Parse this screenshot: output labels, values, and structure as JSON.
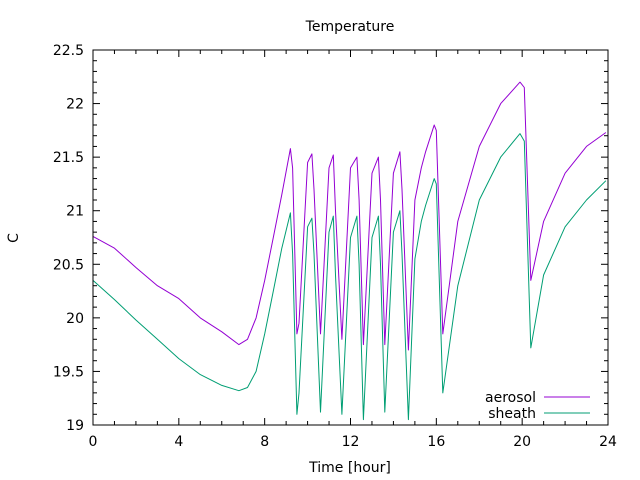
{
  "chart_data": {
    "type": "line",
    "title": "Temperature",
    "xlabel": "Time [hour]",
    "ylabel": "C",
    "xlim": [
      0,
      24
    ],
    "ylim": [
      19,
      22.5
    ],
    "xticks": [
      "0",
      "4",
      "8",
      "12",
      "16",
      "20",
      "24"
    ],
    "yticks": [
      "19",
      "19.5",
      "20",
      "20.5",
      "21",
      "21.5",
      "22",
      "22.5"
    ],
    "grid": false,
    "legend_position": "bottom-right",
    "series": [
      {
        "name": "aerosol",
        "color": "#9400d3",
        "x": [
          0,
          1,
          2,
          3,
          4,
          5,
          6,
          6.8,
          7.2,
          7.6,
          8.0,
          8.4,
          8.8,
          9.2,
          9.3,
          9.5,
          9.6,
          10.0,
          10.2,
          10.3,
          10.6,
          11.0,
          11.2,
          11.3,
          11.6,
          12.0,
          12.3,
          12.4,
          12.6,
          13.0,
          13.3,
          13.4,
          13.6,
          14.0,
          14.3,
          14.4,
          14.7,
          15.0,
          15.3,
          15.5,
          15.9,
          16.0,
          16.3,
          17.0,
          18.0,
          19.0,
          19.9,
          20.1,
          20.4,
          21.0,
          22.0,
          23.0,
          23.9
        ],
        "y": [
          20.76,
          20.65,
          20.47,
          20.3,
          20.18,
          20.0,
          19.87,
          19.75,
          19.8,
          20.0,
          20.35,
          20.75,
          21.15,
          21.58,
          21.4,
          19.85,
          19.95,
          21.45,
          21.53,
          21.2,
          19.85,
          21.4,
          21.52,
          21.0,
          19.8,
          21.4,
          21.5,
          21.1,
          19.75,
          21.35,
          21.5,
          21.1,
          19.75,
          21.35,
          21.55,
          21.2,
          19.7,
          21.1,
          21.4,
          21.55,
          21.8,
          21.75,
          19.85,
          20.9,
          21.6,
          22.0,
          22.2,
          22.15,
          20.35,
          20.9,
          21.35,
          21.6,
          21.73
        ]
      },
      {
        "name": "sheath",
        "color": "#009e73",
        "x": [
          0,
          1,
          2,
          3,
          4,
          5,
          6,
          6.8,
          7.2,
          7.6,
          8.0,
          8.4,
          8.8,
          9.2,
          9.3,
          9.5,
          9.6,
          10.0,
          10.2,
          10.3,
          10.6,
          11.0,
          11.2,
          11.3,
          11.6,
          12.0,
          12.3,
          12.4,
          12.6,
          13.0,
          13.3,
          13.4,
          13.6,
          14.0,
          14.3,
          14.4,
          14.7,
          15.0,
          15.3,
          15.5,
          15.9,
          16.0,
          16.3,
          17.0,
          18.0,
          19.0,
          19.9,
          20.1,
          20.4,
          21.0,
          22.0,
          23.0,
          23.9
        ],
        "y": [
          20.35,
          20.17,
          19.98,
          19.8,
          19.62,
          19.47,
          19.37,
          19.32,
          19.35,
          19.5,
          19.85,
          20.25,
          20.65,
          20.98,
          20.6,
          19.1,
          19.3,
          20.85,
          20.93,
          20.6,
          19.12,
          20.8,
          20.95,
          20.4,
          19.1,
          20.75,
          20.95,
          20.5,
          19.05,
          20.75,
          20.95,
          20.5,
          19.12,
          20.8,
          21.0,
          20.6,
          19.05,
          20.55,
          20.9,
          21.05,
          21.3,
          21.25,
          19.3,
          20.3,
          21.1,
          21.5,
          21.72,
          21.65,
          19.72,
          20.4,
          20.85,
          21.1,
          21.28
        ]
      }
    ]
  }
}
